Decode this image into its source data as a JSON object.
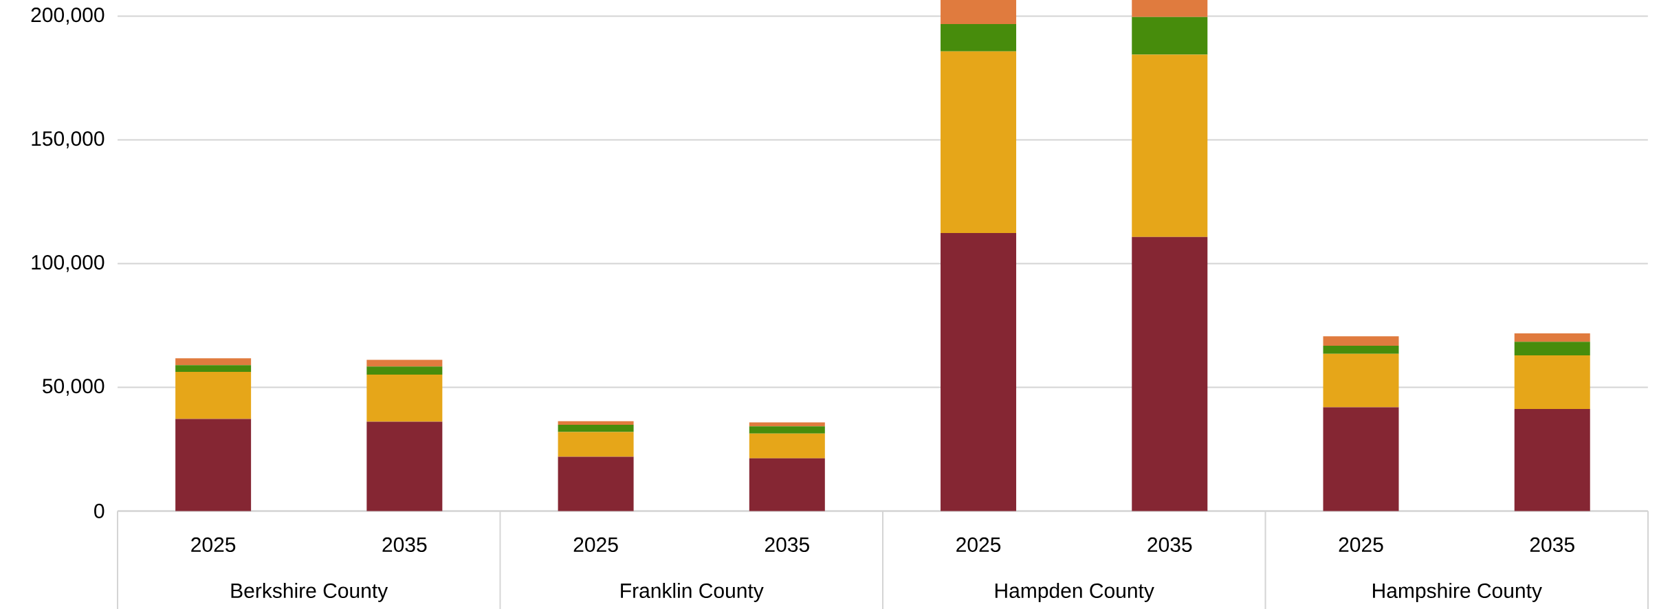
{
  "chart_data": {
    "type": "bar",
    "stacked": true,
    "grid": "y",
    "categories": [
      "2025",
      "2035",
      "2025",
      "2035",
      "2025",
      "2035",
      "2025",
      "2035"
    ],
    "annotations": [
      "Berkshire County",
      "Franklin County",
      "Hampden County",
      "Hampshire County"
    ],
    "series": [
      {
        "color": "#852633",
        "values": [
          37200,
          36100,
          21900,
          21300,
          112300,
          110700,
          41900,
          41200
        ]
      },
      {
        "color": "#e6a619",
        "values": [
          19000,
          19000,
          10000,
          10000,
          73400,
          73700,
          21600,
          21700
        ]
      },
      {
        "color": "#478c0c",
        "values": [
          2700,
          3300,
          2900,
          2900,
          11100,
          15200,
          3300,
          5500
        ]
      },
      {
        "color": "#e07b3e",
        "values": [
          2800,
          2700,
          1500,
          1600,
          9700,
          6900,
          3800,
          3400
        ]
      }
    ],
    "ylim": [
      0,
      206500
    ],
    "yticks": [
      0,
      {
        "value": 50000,
        "label": "50,000"
      },
      {
        "value": 100000,
        "label": "100,000"
      },
      {
        "value": 150000,
        "label": "150,000"
      },
      {
        "value": 200000,
        "label": "200,000"
      }
    ]
  }
}
